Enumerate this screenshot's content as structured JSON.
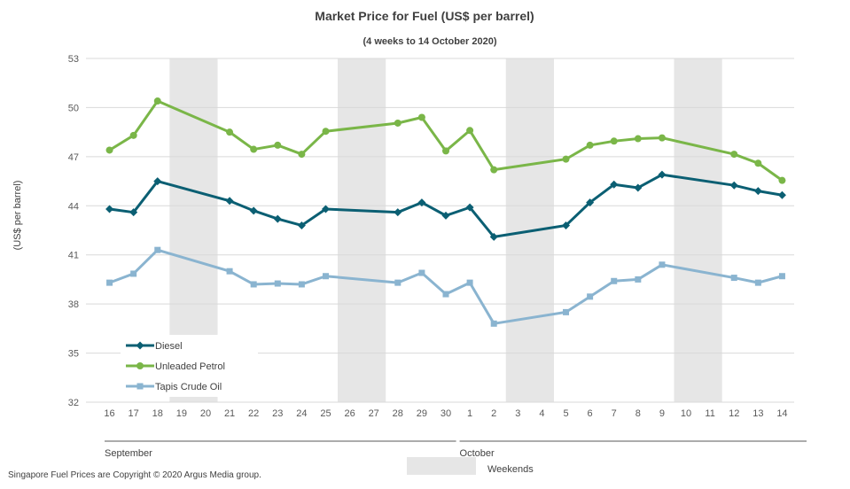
{
  "chart_data": {
    "type": "line",
    "title": "Market Price for Fuel (US$ per barrel)",
    "subtitle": "(4 weeks to 14 October 2020)",
    "ylabel": "(US$ per barrel)",
    "xlabel": "",
    "ylim": [
      32,
      53
    ],
    "yticks": [
      32,
      35,
      38,
      41,
      44,
      47,
      50,
      53
    ],
    "grid": true,
    "categories": [
      "16",
      "17",
      "18",
      "19",
      "20",
      "21",
      "22",
      "23",
      "24",
      "25",
      "26",
      "27",
      "28",
      "29",
      "30",
      "1",
      "2",
      "3",
      "4",
      "5",
      "6",
      "7",
      "8",
      "9",
      "10",
      "11",
      "12",
      "13",
      "14"
    ],
    "weekends": [
      [
        "19",
        "20"
      ],
      [
        "26",
        "27"
      ],
      [
        "3",
        "4"
      ],
      [
        "10",
        "11"
      ]
    ],
    "weekend_label": "Weekends",
    "weekend_color": "#e6e6e6",
    "months": [
      {
        "label": "September",
        "from": "16",
        "to": "30"
      },
      {
        "label": "October",
        "from": "1",
        "to": "14"
      }
    ],
    "legend_position": "bottom-left",
    "series": [
      {
        "name": "Diesel",
        "color": "#0b5f73",
        "marker": "diamond",
        "values": [
          43.8,
          43.6,
          45.5,
          null,
          null,
          44.3,
          43.7,
          43.2,
          42.8,
          43.8,
          null,
          null,
          43.6,
          44.2,
          43.4,
          43.9,
          42.1,
          null,
          null,
          42.8,
          44.2,
          45.3,
          45.1,
          45.9,
          null,
          null,
          45.25,
          44.9,
          44.65
        ]
      },
      {
        "name": "Unleaded Petrol",
        "color": "#7ab648",
        "marker": "circle",
        "values": [
          47.4,
          48.3,
          50.4,
          null,
          null,
          48.5,
          47.45,
          47.7,
          47.15,
          48.55,
          null,
          null,
          49.05,
          49.4,
          47.35,
          48.6,
          46.2,
          null,
          null,
          46.85,
          47.7,
          47.95,
          48.1,
          48.15,
          null,
          null,
          47.15,
          46.6,
          45.55
        ]
      },
      {
        "name": "Tapis Crude Oil",
        "color": "#8ab4d0",
        "marker": "square",
        "values": [
          39.3,
          39.85,
          41.3,
          null,
          null,
          40.0,
          39.2,
          39.25,
          39.2,
          39.7,
          null,
          null,
          39.3,
          39.9,
          38.6,
          39.3,
          36.8,
          null,
          null,
          37.5,
          38.45,
          39.4,
          39.5,
          40.4,
          null,
          null,
          39.6,
          39.3,
          39.7
        ]
      }
    ]
  },
  "footer": {
    "copyright": "Singapore Fuel Prices are Copyright © 2020 Argus Media group."
  }
}
